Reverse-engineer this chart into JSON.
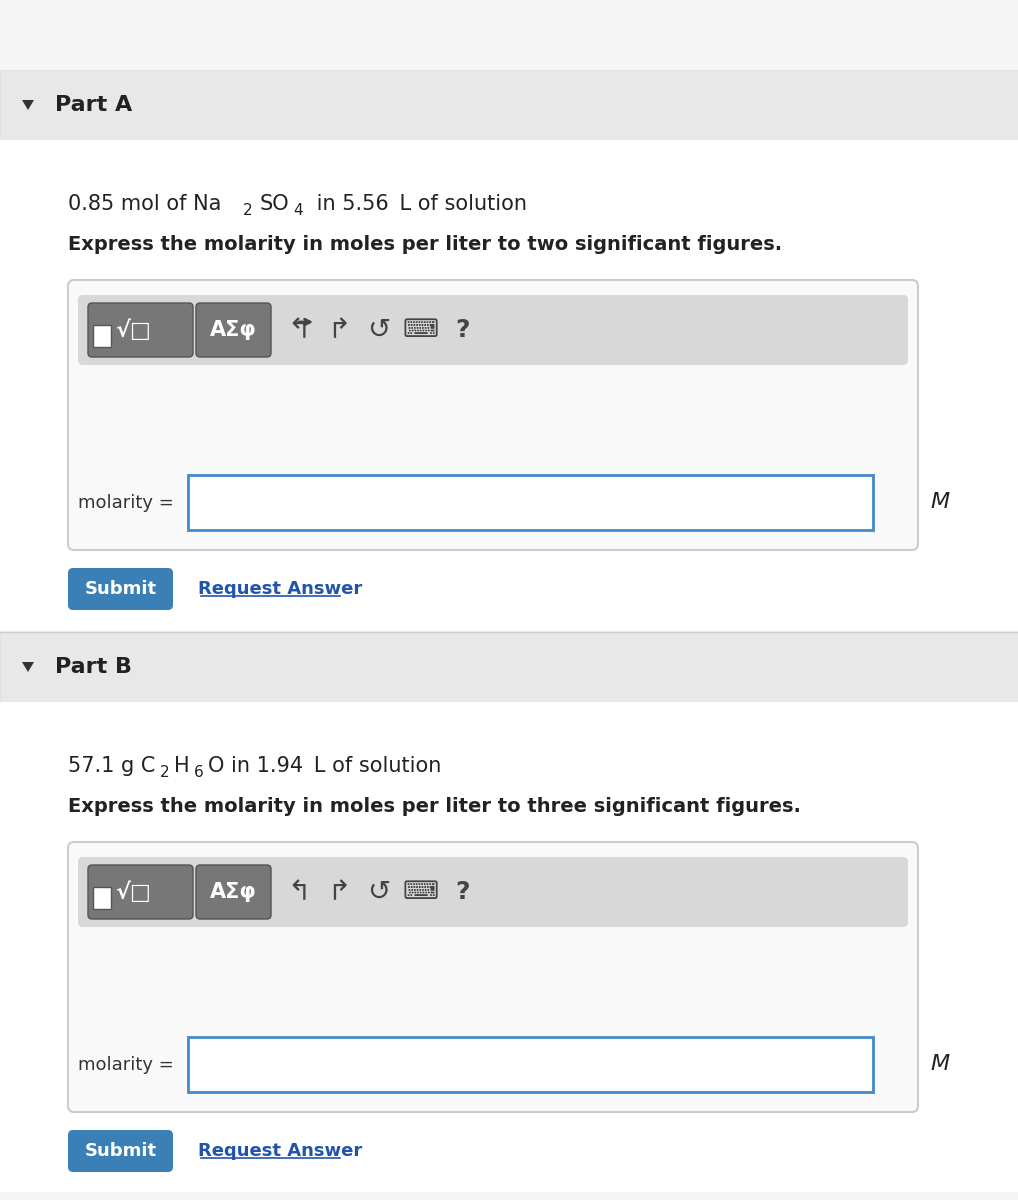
{
  "bg_color": "#f5f5f5",
  "white": "#ffffff",
  "part_header_bg": "#e8e8e8",
  "part_a_label": "Part A",
  "part_b_label": "Part B",
  "part_a_given": "0.85 mol of Na",
  "part_a_given_sub2": "2",
  "part_a_given_mid": "SO",
  "part_a_given_sub4": "4",
  "part_a_given_end": " in 5.56 L of solution",
  "part_a_instruction": "Express the molarity in moles per liter to two significant figures.",
  "part_b_given": "57.1 g C",
  "part_b_given_sub2": "2",
  "part_b_given_mid": "H",
  "part_b_given_sub6": "6",
  "part_b_given_mid2": "O in 1.94 L of solution",
  "part_b_instruction": "Express the molarity in moles per liter to three significant figures.",
  "molarity_label": "molarity =",
  "m_unit": "M",
  "submit_color": "#3a7fb5",
  "submit_text": "Submit",
  "request_answer_text": "Request Answer",
  "request_answer_color": "#2255aa",
  "toolbar_bg": "#d0d0d0",
  "toolbar_btn_bg": "#808080",
  "input_border_color": "#4488cc",
  "input_bg": "#ffffff",
  "box_border_color": "#cccccc"
}
